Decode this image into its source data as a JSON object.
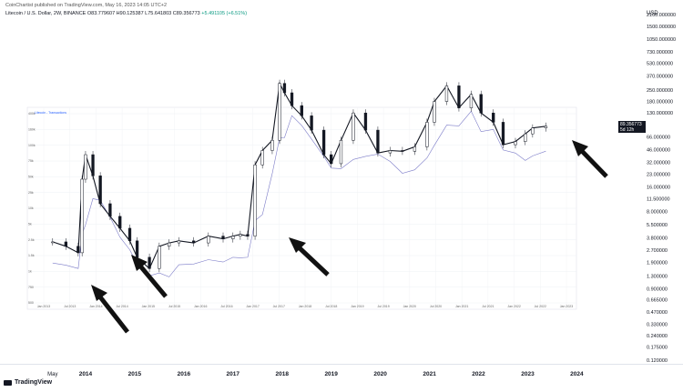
{
  "header": {
    "publisher_line": "CoinChartist published on TradingView.com, May 16, 2023 14:05 UTC+2"
  },
  "symbol": {
    "name": "Litecoin / U.S. Dollar, 2W, BINANCE",
    "ohlc": "O83.779607 H90.125387 L75.641803 C89.356773",
    "change": "+5.491105 (+6.51%)"
  },
  "currency": "USD",
  "price_tag": {
    "value": "89.356773",
    "countdown": "5d 12h"
  },
  "brand": "TradingView",
  "inset": {
    "legend": "Litecoin - Transactions",
    "y_ticks": [
      "400k",
      "160k",
      "100k",
      "75k",
      "50k",
      "25k",
      "10k",
      "5k",
      "2.5k",
      "1.5k",
      "1k",
      "750",
      "500"
    ],
    "x_ticks": [
      "Jan 2013",
      "Jul 2013",
      "Jan 2014",
      "Jul 2014",
      "Jan 2015",
      "Jul 2015",
      "Jan 2016",
      "Jul 2016",
      "Jan 2017",
      "Jul 2017",
      "Jan 2018",
      "Jul 2018",
      "Jan 2019",
      "Jul 2019",
      "Jan 2020",
      "Jul 2020",
      "Jan 2021",
      "Jul 2021",
      "Jan 2022",
      "Jul 2022",
      "Jan 2023"
    ]
  },
  "chart_data": {
    "type": "line",
    "title": "",
    "xlabel": "",
    "ylabel": "USD",
    "y_scale": "log",
    "ylim": [
      0.12,
      2100
    ],
    "grid": true,
    "legend_position": "none",
    "x_axis_labels": [
      "May",
      "2014",
      "2015",
      "2016",
      "2017",
      "2018",
      "2019",
      "2020",
      "2021",
      "2022",
      "2023",
      "2024"
    ],
    "y_axis_labels": [
      "2100.000000",
      "1500.000000",
      "1050.000000",
      "730.000000",
      "530.000000",
      "370.000000",
      "250.000000",
      "180.000000",
      "130.000000",
      "89.356773",
      "66.000000",
      "46.000000",
      "32.000000",
      "23.000000",
      "16.000000",
      "11.500000",
      "8.000000",
      "5.500000",
      "3.800000",
      "2.700000",
      "1.900000",
      "1.300000",
      "0.900000",
      "0.665000",
      "0.470000",
      "0.330000",
      "0.240000",
      "0.175000",
      "0.120000"
    ],
    "series": [
      {
        "name": "Litecoin / U.S. Dollar",
        "color": "#131722",
        "x": [
          2013.33,
          2013.6,
          2013.85,
          2013.93,
          2014.0,
          2014.15,
          2014.3,
          2014.5,
          2014.7,
          2014.9,
          2015.05,
          2015.3,
          2015.5,
          2015.7,
          2015.9,
          2016.2,
          2016.5,
          2016.8,
          2017.0,
          2017.15,
          2017.3,
          2017.45,
          2017.6,
          2017.8,
          2017.95,
          2018.05,
          2018.2,
          2018.4,
          2018.6,
          2018.85,
          2019.0,
          2019.2,
          2019.45,
          2019.7,
          2019.95,
          2020.2,
          2020.45,
          2020.7,
          2020.95,
          2021.1,
          2021.35,
          2021.6,
          2021.85,
          2022.05,
          2022.3,
          2022.5,
          2022.75,
          2022.95,
          2023.1,
          2023.37
        ],
        "values": [
          3.4,
          3.0,
          2.5,
          20.0,
          40.0,
          22.0,
          10.0,
          7.0,
          5.0,
          3.5,
          2.2,
          1.6,
          3.0,
          3.3,
          3.5,
          3.3,
          4.0,
          3.7,
          4.0,
          4.2,
          4.0,
          30.0,
          45.0,
          60.0,
          300.0,
          230.0,
          160.0,
          120.0,
          80.0,
          40.0,
          31.0,
          60.0,
          130.0,
          80.0,
          42.0,
          45.0,
          44.0,
          50.0,
          100.0,
          180.0,
          280.0,
          150.0,
          220.0,
          130.0,
          100.0,
          53.0,
          58.0,
          72.0,
          85.0,
          89.36
        ]
      }
    ]
  }
}
